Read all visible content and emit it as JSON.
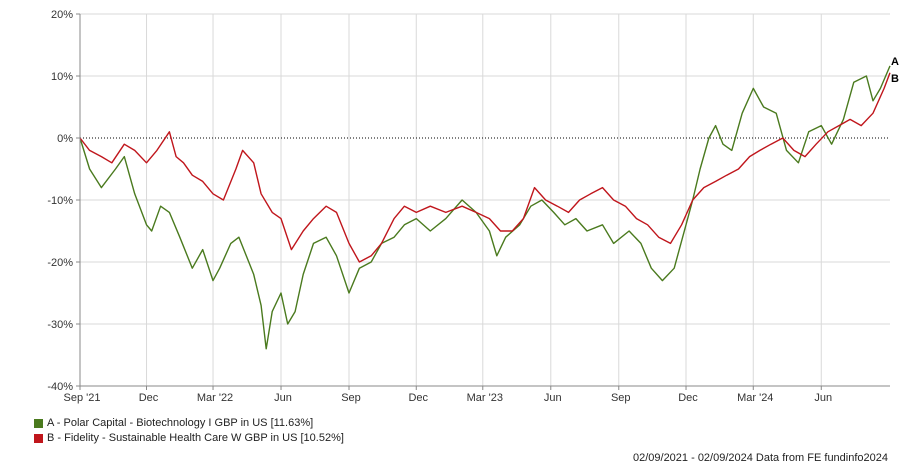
{
  "chart_data": {
    "type": "line",
    "title": "",
    "xlabel": "",
    "ylabel": "",
    "ylim": [
      -40,
      20
    ],
    "yticks": [
      20,
      10,
      0,
      -10,
      -20,
      -30,
      -40
    ],
    "ytick_labels": [
      "20%",
      "10%",
      "0%",
      "-10%",
      "-20%",
      "-30%",
      "-40%"
    ],
    "x_domain": [
      "2021-09-02",
      "2024-09-02"
    ],
    "xticks": [
      {
        "date": "2021-09-01",
        "label": "Sep '21"
      },
      {
        "date": "2021-12-01",
        "label": "Dec"
      },
      {
        "date": "2022-03-01",
        "label": "Mar '22"
      },
      {
        "date": "2022-06-01",
        "label": "Jun"
      },
      {
        "date": "2022-09-01",
        "label": "Sep"
      },
      {
        "date": "2022-12-01",
        "label": "Dec"
      },
      {
        "date": "2023-03-01",
        "label": "Mar '23"
      },
      {
        "date": "2023-06-01",
        "label": "Jun"
      },
      {
        "date": "2023-09-01",
        "label": "Sep"
      },
      {
        "date": "2023-12-01",
        "label": "Dec"
      },
      {
        "date": "2024-03-01",
        "label": "Mar '24"
      },
      {
        "date": "2024-06-01",
        "label": "Jun"
      }
    ],
    "grid": true,
    "legend_position": "bottom-left",
    "series": [
      {
        "name": "A - Polar Capital - Biotechnology I GBP in US [11.63%]",
        "end_label": "A",
        "color": "#4a7a1e",
        "points": [
          [
            "2021-09-02",
            0
          ],
          [
            "2021-09-15",
            -5
          ],
          [
            "2021-10-01",
            -8
          ],
          [
            "2021-10-20",
            -5
          ],
          [
            "2021-11-01",
            -3
          ],
          [
            "2021-11-15",
            -9
          ],
          [
            "2021-12-01",
            -14
          ],
          [
            "2021-12-08",
            -15
          ],
          [
            "2021-12-20",
            -11
          ],
          [
            "2022-01-01",
            -12
          ],
          [
            "2022-01-15",
            -16
          ],
          [
            "2022-02-01",
            -21
          ],
          [
            "2022-02-15",
            -18
          ],
          [
            "2022-03-01",
            -23
          ],
          [
            "2022-03-10",
            -21
          ],
          [
            "2022-03-25",
            -17
          ],
          [
            "2022-04-05",
            -16
          ],
          [
            "2022-04-25",
            -22
          ],
          [
            "2022-05-05",
            -27
          ],
          [
            "2022-05-12",
            -34
          ],
          [
            "2022-05-20",
            -28
          ],
          [
            "2022-06-01",
            -25
          ],
          [
            "2022-06-10",
            -30
          ],
          [
            "2022-06-20",
            -28
          ],
          [
            "2022-07-01",
            -22
          ],
          [
            "2022-07-15",
            -17
          ],
          [
            "2022-08-01",
            -16
          ],
          [
            "2022-08-15",
            -19
          ],
          [
            "2022-09-01",
            -25
          ],
          [
            "2022-09-15",
            -21
          ],
          [
            "2022-10-01",
            -20
          ],
          [
            "2022-10-15",
            -17
          ],
          [
            "2022-11-01",
            -16
          ],
          [
            "2022-11-15",
            -14
          ],
          [
            "2022-12-01",
            -13
          ],
          [
            "2022-12-20",
            -15
          ],
          [
            "2023-01-10",
            -13
          ],
          [
            "2023-02-01",
            -10
          ],
          [
            "2023-02-20",
            -12
          ],
          [
            "2023-03-10",
            -15
          ],
          [
            "2023-03-20",
            -19
          ],
          [
            "2023-04-01",
            -16
          ],
          [
            "2023-04-20",
            -14
          ],
          [
            "2023-05-05",
            -11
          ],
          [
            "2023-05-20",
            -10
          ],
          [
            "2023-06-05",
            -12
          ],
          [
            "2023-06-20",
            -14
          ],
          [
            "2023-07-05",
            -13
          ],
          [
            "2023-07-20",
            -15
          ],
          [
            "2023-08-10",
            -14
          ],
          [
            "2023-08-25",
            -17
          ],
          [
            "2023-09-15",
            -15
          ],
          [
            "2023-10-01",
            -17
          ],
          [
            "2023-10-15",
            -21
          ],
          [
            "2023-10-30",
            -23
          ],
          [
            "2023-11-15",
            -21
          ],
          [
            "2023-12-01",
            -14
          ],
          [
            "2023-12-10",
            -10
          ],
          [
            "2023-12-20",
            -5
          ],
          [
            "2024-01-01",
            0
          ],
          [
            "2024-01-10",
            2
          ],
          [
            "2024-01-20",
            -1
          ],
          [
            "2024-02-01",
            -2
          ],
          [
            "2024-02-15",
            4
          ],
          [
            "2024-03-01",
            8
          ],
          [
            "2024-03-15",
            5
          ],
          [
            "2024-04-01",
            4
          ],
          [
            "2024-04-15",
            -2
          ],
          [
            "2024-05-01",
            -4
          ],
          [
            "2024-05-15",
            1
          ],
          [
            "2024-06-01",
            2
          ],
          [
            "2024-06-15",
            -1
          ],
          [
            "2024-07-01",
            3
          ],
          [
            "2024-07-15",
            9
          ],
          [
            "2024-08-01",
            10
          ],
          [
            "2024-08-10",
            6
          ],
          [
            "2024-08-20",
            8
          ],
          [
            "2024-09-02",
            11.63
          ]
        ]
      },
      {
        "name": "B - Fidelity - Sustainable Health Care W GBP in US [10.52%]",
        "end_label": "B",
        "color": "#c0161c",
        "points": [
          [
            "2021-09-02",
            0
          ],
          [
            "2021-09-15",
            -2
          ],
          [
            "2021-10-01",
            -3
          ],
          [
            "2021-10-15",
            -4
          ],
          [
            "2021-11-01",
            -1
          ],
          [
            "2021-11-15",
            -2
          ],
          [
            "2021-12-01",
            -4
          ],
          [
            "2021-12-15",
            -2
          ],
          [
            "2022-01-01",
            1
          ],
          [
            "2022-01-10",
            -3
          ],
          [
            "2022-01-20",
            -4
          ],
          [
            "2022-02-01",
            -6
          ],
          [
            "2022-02-15",
            -7
          ],
          [
            "2022-03-01",
            -9
          ],
          [
            "2022-03-15",
            -10
          ],
          [
            "2022-04-01",
            -5
          ],
          [
            "2022-04-10",
            -2
          ],
          [
            "2022-04-25",
            -4
          ],
          [
            "2022-05-05",
            -9
          ],
          [
            "2022-05-20",
            -12
          ],
          [
            "2022-06-01",
            -13
          ],
          [
            "2022-06-15",
            -18
          ],
          [
            "2022-07-01",
            -15
          ],
          [
            "2022-07-15",
            -13
          ],
          [
            "2022-08-01",
            -11
          ],
          [
            "2022-08-15",
            -12
          ],
          [
            "2022-09-01",
            -17
          ],
          [
            "2022-09-15",
            -20
          ],
          [
            "2022-10-01",
            -19
          ],
          [
            "2022-10-15",
            -17
          ],
          [
            "2022-11-01",
            -13
          ],
          [
            "2022-11-15",
            -11
          ],
          [
            "2022-12-01",
            -12
          ],
          [
            "2022-12-20",
            -11
          ],
          [
            "2023-01-10",
            -12
          ],
          [
            "2023-02-01",
            -11
          ],
          [
            "2023-02-20",
            -12
          ],
          [
            "2023-03-10",
            -13
          ],
          [
            "2023-03-25",
            -15
          ],
          [
            "2023-04-10",
            -15
          ],
          [
            "2023-04-25",
            -13
          ],
          [
            "2023-05-10",
            -8
          ],
          [
            "2023-05-25",
            -10
          ],
          [
            "2023-06-10",
            -11
          ],
          [
            "2023-06-25",
            -12
          ],
          [
            "2023-07-10",
            -10
          ],
          [
            "2023-07-25",
            -9
          ],
          [
            "2023-08-10",
            -8
          ],
          [
            "2023-08-25",
            -10
          ],
          [
            "2023-09-10",
            -11
          ],
          [
            "2023-09-25",
            -13
          ],
          [
            "2023-10-10",
            -14
          ],
          [
            "2023-10-25",
            -16
          ],
          [
            "2023-11-10",
            -17
          ],
          [
            "2023-11-25",
            -14
          ],
          [
            "2023-12-10",
            -10
          ],
          [
            "2023-12-25",
            -8
          ],
          [
            "2024-01-10",
            -7
          ],
          [
            "2024-01-25",
            -6
          ],
          [
            "2024-02-10",
            -5
          ],
          [
            "2024-02-25",
            -3
          ],
          [
            "2024-03-10",
            -2
          ],
          [
            "2024-03-25",
            -1
          ],
          [
            "2024-04-10",
            0
          ],
          [
            "2024-04-25",
            -2
          ],
          [
            "2024-05-10",
            -3
          ],
          [
            "2024-05-25",
            -1
          ],
          [
            "2024-06-10",
            1
          ],
          [
            "2024-06-25",
            2
          ],
          [
            "2024-07-10",
            3
          ],
          [
            "2024-07-25",
            2
          ],
          [
            "2024-08-10",
            4
          ],
          [
            "2024-08-25",
            8
          ],
          [
            "2024-09-02",
            10.52
          ]
        ]
      }
    ]
  },
  "footer": {
    "text": "02/09/2021 - 02/09/2024 Data from FE fundinfo2024"
  }
}
